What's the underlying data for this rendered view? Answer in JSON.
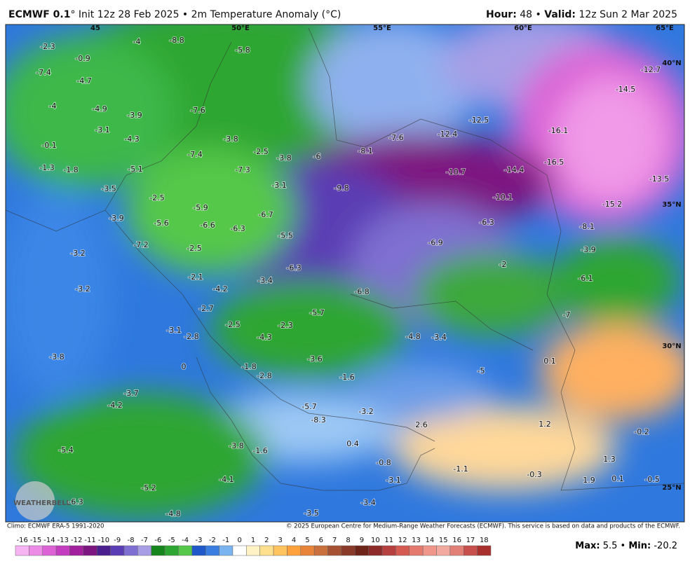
{
  "header": {
    "title_bold": "ECMWF 0.1",
    "title_rest": "° Init 12z 28 Feb 2025 • 2m Temperature Anomaly (°C)",
    "hour_label": "Hour:",
    "hour": 48,
    "sep": "•",
    "valid_label": "Valid:",
    "valid": "12z Sun 2 Mar 2025"
  },
  "map": {
    "lon_labels": [
      "45",
      "50°E",
      "55°E",
      "60°E",
      "65°E"
    ],
    "lat_labels": [
      "40°N",
      "35°N",
      "30°N",
      "25°N"
    ],
    "logo": "WEATHERBELL",
    "values": [
      -2.3,
      -4.0,
      -8.8,
      -5.8,
      -7.4,
      -0.9,
      -4.7,
      -4.0,
      -4.9,
      -3.9,
      -7.6,
      -12.7,
      -14.5,
      -3.1,
      -4.3,
      -3.8,
      -16.1,
      -12.5,
      -7.6,
      -12.4,
      -0.1,
      -2.5,
      -8.1,
      -3.8,
      -6.0,
      -7.4,
      -16.5,
      -14.4,
      -1.3,
      -1.8,
      -5.1,
      -7.3,
      -10.7,
      -13.5,
      -3.5,
      -3.1,
      -9.8,
      -2.5,
      -10.1,
      -15.2,
      -5.9,
      -6.7,
      -3.9,
      -5.6,
      -6.6,
      -6.3,
      -6.3,
      -8.1,
      -5.5,
      -6.9,
      -7.2,
      -2.5,
      -3.9,
      -3.2,
      -2.0,
      -6.3,
      -2.1,
      -3.4,
      -6.1,
      -3.2,
      -4.2,
      -6.8,
      -2.7,
      -5.7,
      -7.0,
      -2.5,
      -2.3,
      -3.1,
      -2.8,
      -4.3,
      -4.8,
      -3.4,
      -3.8,
      -3.6,
      0.1,
      -0.0,
      -1.8,
      -5.0,
      -2.8,
      -1.6,
      -3.7,
      -4.2,
      -5.7,
      -3.2,
      -8.3,
      2.6,
      1.2,
      -0.2,
      -3.8,
      0.4,
      -5.4,
      -1.6,
      -0.8,
      1.3,
      -1.1,
      -4.1,
      -3.1,
      -0.3,
      1.9,
      0.1,
      -0.5,
      -5.2,
      -6.3,
      -3.4,
      -3.5,
      -4.8
    ]
  },
  "footer": {
    "climo": "Climo: ECMWF ERA-5 1991-2020",
    "copyright": "© 2025 European Centre for Medium-Range Weather Forecasts (ECMWF). This service is based on data and products of the ECMWF."
  },
  "colorbar": {
    "ticks": [
      -16,
      -15,
      -14,
      -13,
      -12,
      -11,
      -10,
      -9,
      -8,
      -7,
      -6,
      -5,
      -4,
      -3,
      -2,
      -1,
      0,
      1,
      2,
      3,
      4,
      5,
      6,
      7,
      8,
      9,
      10,
      11,
      12,
      13,
      14,
      15,
      16,
      17,
      18
    ],
    "colors": [
      "#f7b4f2",
      "#ec8ce6",
      "#dc62d6",
      "#c43cbf",
      "#a21f9e",
      "#7d1680",
      "#4b1f8e",
      "#5a3cb4",
      "#7f6fd2",
      "#a79ee6",
      "#16861c",
      "#2ea632",
      "#55c84a",
      "#1f58c8",
      "#3a7ee2",
      "#79b4f0",
      "#ffffff",
      "#fff2c4",
      "#ffe08e",
      "#ffc45e",
      "#ffa23c",
      "#e8843a",
      "#c9703c",
      "#a65232",
      "#8a3a28",
      "#6e2418",
      "#8e2a2a",
      "#b64040",
      "#d45a52",
      "#e47a6e",
      "#f0968a",
      "#f2aaa0",
      "#e28078",
      "#c8504c",
      "#a8302c"
    ]
  },
  "stats": {
    "max_label": "Max:",
    "max": 5.5,
    "sep": "•",
    "min_label": "Min:",
    "min": -20.2
  }
}
